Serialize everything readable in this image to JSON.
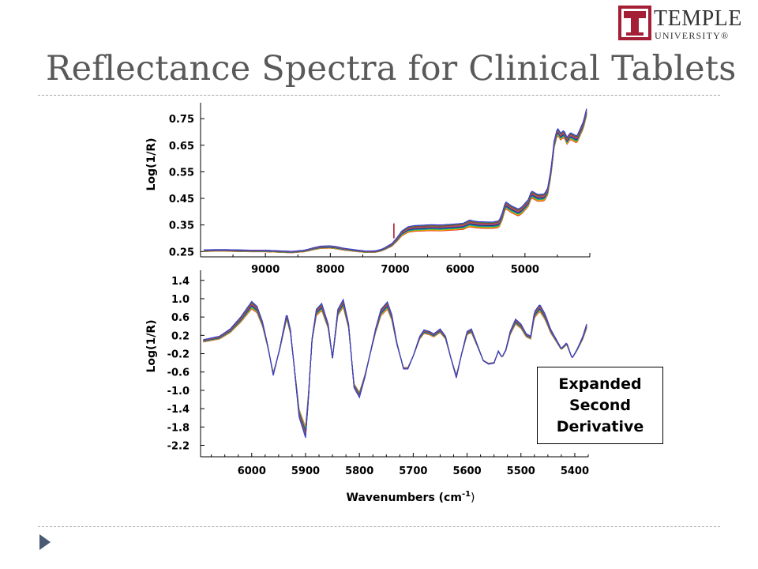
{
  "slide": {
    "title": "Reflectance Spectra for Clinical Tablets",
    "logo_text": "TEMPLE",
    "logo_subtext": "UNIVERSITY®"
  },
  "callout_text": "Expanded\nSecond\nDerivative",
  "chart_data": [
    {
      "type": "line",
      "ylabel": "Log(1/R)",
      "xlabel": "",
      "x_ticks": [
        "9000",
        "8000",
        "7000",
        "6000",
        "5000"
      ],
      "y_ticks": [
        "0.25",
        "0.35",
        "0.45",
        "0.55",
        "0.65",
        "0.75"
      ],
      "xlim": [
        10000,
        4000
      ],
      "ylim": [
        0.23,
        0.81
      ],
      "x_reversed": true,
      "grid": false,
      "legend": "none",
      "series_count": 14,
      "series_colors": [
        "#e41a1c",
        "#ff7f00",
        "#d4c600",
        "#4daf4a",
        "#00a0a0",
        "#1f78b4",
        "#08306b",
        "#6a3d9a",
        "#e7298a",
        "#a6761d",
        "#666666",
        "#b2182b",
        "#2ca25f",
        "#3a3ad6"
      ],
      "mean_spectrum": {
        "x": [
          9950,
          9800,
          9600,
          9400,
          9200,
          9000,
          8800,
          8600,
          8400,
          8250,
          8150,
          8000,
          7900,
          7800,
          7600,
          7450,
          7300,
          7200,
          7050,
          7000,
          6950,
          6900,
          6800,
          6700,
          6600,
          6450,
          6300,
          6100,
          5950,
          5900,
          5850,
          5800,
          5700,
          5500,
          5400,
          5350,
          5300,
          5200,
          5100,
          5050,
          4950,
          4900,
          4800,
          4700,
          4650,
          4600,
          4550,
          4500,
          4450,
          4400,
          4350,
          4300,
          4200,
          4100,
          4050
        ],
        "y": [
          0.253,
          0.254,
          0.254,
          0.253,
          0.252,
          0.252,
          0.25,
          0.248,
          0.252,
          0.261,
          0.266,
          0.267,
          0.264,
          0.259,
          0.253,
          0.249,
          0.25,
          0.256,
          0.275,
          0.288,
          0.302,
          0.318,
          0.333,
          0.337,
          0.338,
          0.34,
          0.339,
          0.342,
          0.345,
          0.351,
          0.356,
          0.353,
          0.35,
          0.349,
          0.353,
          0.382,
          0.425,
          0.408,
          0.397,
          0.405,
          0.432,
          0.465,
          0.452,
          0.454,
          0.476,
          0.545,
          0.653,
          0.703,
          0.683,
          0.693,
          0.667,
          0.685,
          0.671,
          0.726,
          0.775
        ]
      },
      "spike": {
        "x": 7020,
        "y": 0.356
      }
    },
    {
      "type": "line",
      "ylabel": "Log(1/R)",
      "xlabel": "Wavenumbers (cm",
      "xlabel_sup": "-1",
      "xlabel_end": ")",
      "x_ticks": [
        "6000",
        "5900",
        "5800",
        "5700",
        "5600",
        "5500",
        "5400"
      ],
      "y_ticks": [
        "1.4",
        "1.0",
        "0.6",
        "0.2",
        "-0.2",
        "-0.6",
        "-1.0",
        "-1.4",
        "-1.8",
        "-2.2"
      ],
      "xlim": [
        6095,
        5375
      ],
      "ylim": [
        -2.45,
        1.62
      ],
      "x_reversed": true,
      "grid": false,
      "legend": "none",
      "series_count": 14,
      "mean_spectrum": {
        "x": [
          6090,
          6060,
          6040,
          6020,
          6000,
          5990,
          5980,
          5970,
          5960,
          5948,
          5935,
          5928,
          5920,
          5912,
          5900,
          5895,
          5888,
          5880,
          5870,
          5858,
          5850,
          5840,
          5830,
          5820,
          5810,
          5800,
          5790,
          5780,
          5770,
          5760,
          5748,
          5740,
          5730,
          5718,
          5710,
          5700,
          5688,
          5680,
          5670,
          5662,
          5650,
          5640,
          5630,
          5620,
          5610,
          5600,
          5592,
          5580,
          5570,
          5560,
          5550,
          5542,
          5535,
          5528,
          5520,
          5510,
          5500,
          5490,
          5482,
          5475,
          5465,
          5455,
          5445,
          5435,
          5425,
          5415,
          5405,
          5395,
          5385,
          5378
        ],
        "y": [
          0.08,
          0.15,
          0.3,
          0.55,
          0.86,
          0.76,
          0.45,
          -0.05,
          -0.65,
          -0.1,
          0.62,
          0.28,
          -0.6,
          -1.5,
          -1.92,
          -1.2,
          0.1,
          0.7,
          0.82,
          0.4,
          -0.3,
          0.7,
          0.9,
          0.4,
          -0.9,
          -1.1,
          -0.7,
          -0.2,
          0.3,
          0.7,
          0.85,
          0.6,
          0.0,
          -0.52,
          -0.52,
          -0.25,
          0.15,
          0.28,
          0.25,
          0.2,
          0.3,
          0.15,
          -0.3,
          -0.7,
          -0.2,
          0.25,
          0.3,
          -0.05,
          -0.35,
          -0.42,
          -0.4,
          -0.15,
          -0.28,
          -0.12,
          0.25,
          0.5,
          0.4,
          0.2,
          0.15,
          0.65,
          0.8,
          0.6,
          0.3,
          0.1,
          -0.1,
          0.02,
          -0.3,
          -0.1,
          0.15,
          0.4
        ]
      }
    }
  ]
}
